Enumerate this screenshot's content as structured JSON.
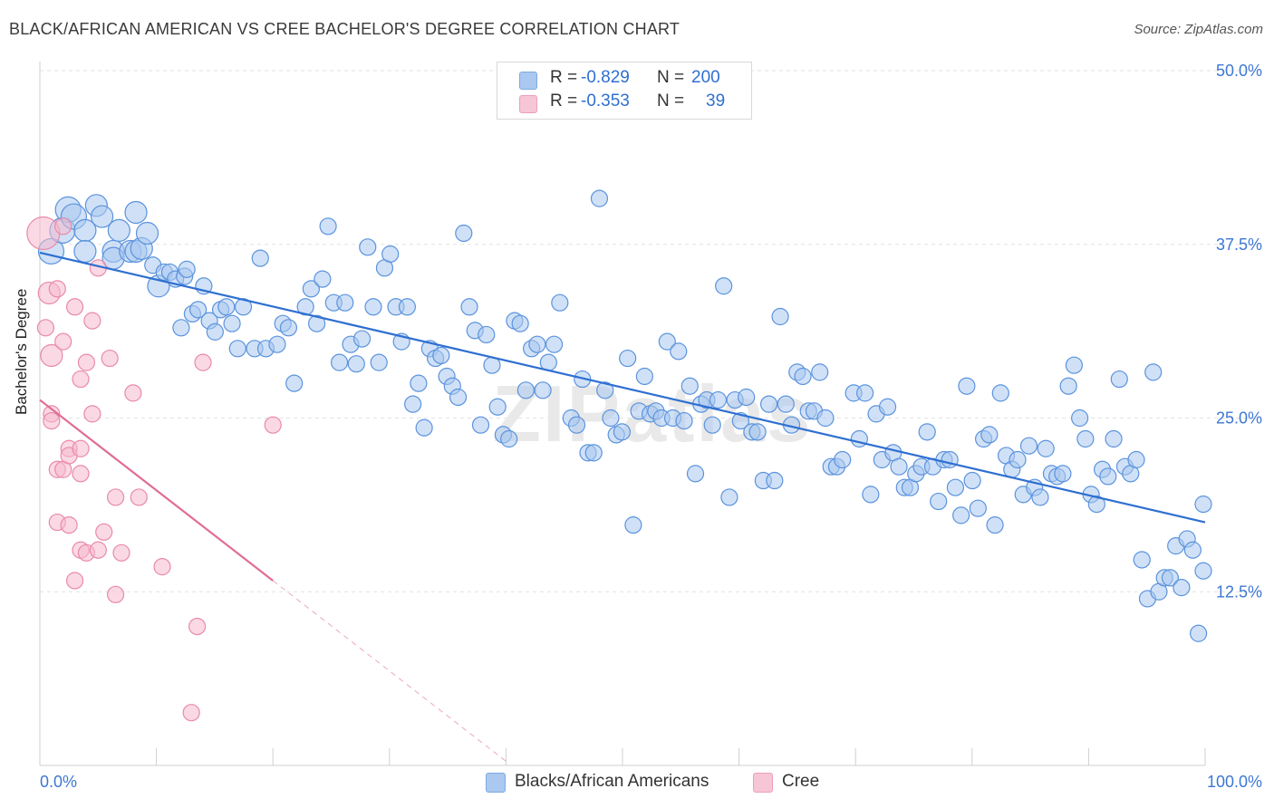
{
  "title": "BLACK/AFRICAN AMERICAN VS CREE BACHELOR'S DEGREE CORRELATION CHART",
  "source": "Source: ZipAtlas.com",
  "watermark": "ZIPatlas",
  "legend": {
    "rows": [
      {
        "r_label": "R =",
        "r_value": "-0.829",
        "n_label": "N =",
        "n_value": "200",
        "color": "#aac8f0"
      },
      {
        "r_label": "R =",
        "r_value": "-0.353",
        "n_label": "N =",
        "n_value": "39",
        "color": "#f6b9cd"
      }
    ]
  },
  "bottom_legend": [
    {
      "label": "Blacks/African Americans",
      "color": "#aac8f0"
    },
    {
      "label": "Cree",
      "color": "#f6b9cd"
    }
  ],
  "chart_data": {
    "type": "scatter",
    "title": "BLACK/AFRICAN AMERICAN VS CREE BACHELOR'S DEGREE CORRELATION CHART",
    "xlabel": "",
    "ylabel": "Bachelor's Degree",
    "xlim": [
      0,
      100
    ],
    "ylim": [
      0,
      50
    ],
    "x_tick_labels": [
      "0.0%",
      "100.0%"
    ],
    "y_tick_labels": [
      "12.5%",
      "25.0%",
      "37.5%",
      "50.0%"
    ],
    "y_ticks": [
      12.5,
      25.0,
      37.5,
      50.0
    ],
    "grid": true,
    "legend_position": "top-center",
    "series": [
      {
        "name": "Blacks/African Americans",
        "color": "#5b93dd",
        "fill": "#aac8f0",
        "trend": {
          "x": [
            0,
            100
          ],
          "y": [
            36.9,
            17.5
          ],
          "color": "#2e6fd1"
        },
        "points": [
          [
            1.0,
            37.0,
            2
          ],
          [
            2.0,
            38.5,
            2
          ],
          [
            2.5,
            40.0,
            2
          ],
          [
            3.0,
            39.5,
            2
          ],
          [
            4.0,
            38.5,
            1
          ],
          [
            4.0,
            37.0,
            1
          ],
          [
            5.0,
            40.3,
            1
          ],
          [
            5.5,
            39.5,
            1
          ],
          [
            6.5,
            37.0,
            1
          ],
          [
            6.5,
            36.5,
            1
          ],
          [
            7.0,
            38.5,
            1
          ],
          [
            8.0,
            37.0,
            1
          ],
          [
            8.5,
            39.8,
            1
          ],
          [
            8.5,
            37.0,
            1
          ],
          [
            9.0,
            37.2,
            1
          ],
          [
            9.5,
            38.3,
            1
          ],
          [
            10.0,
            36.0,
            0
          ],
          [
            10.5,
            34.5,
            1
          ],
          [
            11.0,
            35.5,
            0
          ],
          [
            11.5,
            35.5,
            0
          ],
          [
            12.0,
            35.0,
            0
          ],
          [
            12.5,
            31.5,
            0
          ],
          [
            12.8,
            35.2,
            0
          ],
          [
            13.0,
            35.7,
            0
          ],
          [
            13.5,
            32.5,
            0
          ],
          [
            14.0,
            32.8,
            0
          ],
          [
            14.5,
            34.5,
            0
          ],
          [
            15.0,
            32.0,
            0
          ],
          [
            15.5,
            31.2,
            0
          ],
          [
            16.0,
            32.8,
            0
          ],
          [
            16.5,
            33.0,
            0
          ],
          [
            17.0,
            31.8,
            0
          ],
          [
            17.5,
            30.0,
            0
          ],
          [
            18.0,
            33.0,
            0
          ],
          [
            19.0,
            30.0,
            0
          ],
          [
            19.5,
            36.5,
            0
          ],
          [
            20.0,
            30.0,
            0
          ],
          [
            21.0,
            30.3,
            0
          ],
          [
            21.5,
            31.8,
            0
          ],
          [
            22.0,
            31.5,
            0
          ],
          [
            22.5,
            27.5,
            0
          ],
          [
            23.5,
            33.0,
            0
          ],
          [
            24.0,
            34.3,
            0
          ],
          [
            24.5,
            31.8,
            0
          ],
          [
            25.0,
            35.0,
            0
          ],
          [
            25.5,
            38.8,
            0
          ],
          [
            26.0,
            33.3,
            0
          ],
          [
            26.5,
            29.0,
            0
          ],
          [
            27.0,
            33.3,
            0
          ],
          [
            27.5,
            30.3,
            0
          ],
          [
            28.0,
            28.9,
            0
          ],
          [
            28.5,
            30.7,
            0
          ],
          [
            29.0,
            37.3,
            0
          ],
          [
            29.5,
            33.0,
            0
          ],
          [
            30.0,
            29.0,
            0
          ],
          [
            30.5,
            35.8,
            0
          ],
          [
            31.0,
            36.8,
            0
          ],
          [
            31.5,
            33.0,
            0
          ],
          [
            32.0,
            30.5,
            0
          ],
          [
            32.5,
            33.0,
            0
          ],
          [
            33.0,
            26.0,
            0
          ],
          [
            33.5,
            27.5,
            0
          ],
          [
            34.0,
            24.3,
            0
          ],
          [
            34.5,
            30.0,
            0
          ],
          [
            35.0,
            29.3,
            0
          ],
          [
            35.5,
            29.5,
            0
          ],
          [
            36.0,
            28.0,
            0
          ],
          [
            36.5,
            27.3,
            0
          ],
          [
            37.0,
            26.5,
            0
          ],
          [
            37.5,
            38.3,
            0
          ],
          [
            38.0,
            33.0,
            0
          ],
          [
            38.5,
            31.3,
            0
          ],
          [
            39.0,
            24.5,
            0
          ],
          [
            39.5,
            31.0,
            0
          ],
          [
            40.0,
            28.8,
            0
          ],
          [
            40.5,
            25.8,
            0
          ],
          [
            41.0,
            23.8,
            0
          ],
          [
            41.5,
            23.5,
            0
          ],
          [
            42.0,
            32.0,
            0
          ],
          [
            42.5,
            31.8,
            0
          ],
          [
            43.0,
            27.0,
            0
          ],
          [
            43.5,
            30.0,
            0
          ],
          [
            44.0,
            30.3,
            0
          ],
          [
            44.5,
            27.0,
            0
          ],
          [
            45.0,
            29.0,
            0
          ],
          [
            45.5,
            30.3,
            0
          ],
          [
            46.0,
            33.3,
            0
          ],
          [
            47.0,
            25.0,
            0
          ],
          [
            47.5,
            24.5,
            0
          ],
          [
            48.0,
            27.8,
            0
          ],
          [
            48.5,
            22.5,
            0
          ],
          [
            49.0,
            22.5,
            0
          ],
          [
            49.5,
            40.8,
            0
          ],
          [
            50.0,
            27.0,
            0
          ],
          [
            50.5,
            25.0,
            0
          ],
          [
            51.0,
            23.8,
            0
          ],
          [
            51.5,
            24.0,
            0
          ],
          [
            52.0,
            29.3,
            0
          ],
          [
            52.5,
            17.3,
            0
          ],
          [
            53.0,
            25.5,
            0
          ],
          [
            53.5,
            28.0,
            0
          ],
          [
            54.0,
            25.3,
            0
          ],
          [
            54.5,
            25.5,
            0
          ],
          [
            55.0,
            25.0,
            0
          ],
          [
            55.5,
            30.5,
            0
          ],
          [
            56.0,
            25.0,
            0
          ],
          [
            56.5,
            29.8,
            0
          ],
          [
            57.0,
            24.8,
            0
          ],
          [
            57.5,
            27.3,
            0
          ],
          [
            58.0,
            21.0,
            0
          ],
          [
            58.5,
            26.0,
            0
          ],
          [
            59.0,
            26.3,
            0
          ],
          [
            59.5,
            24.5,
            0
          ],
          [
            60.0,
            26.3,
            0
          ],
          [
            60.5,
            34.5,
            0
          ],
          [
            61.0,
            19.3,
            0
          ],
          [
            61.5,
            26.3,
            0
          ],
          [
            62.0,
            24.8,
            0
          ],
          [
            62.5,
            26.5,
            0
          ],
          [
            63.0,
            24.0,
            0
          ],
          [
            63.5,
            24.0,
            0
          ],
          [
            64.0,
            20.5,
            0
          ],
          [
            64.5,
            26.0,
            0
          ],
          [
            65.0,
            20.5,
            0
          ],
          [
            65.5,
            32.3,
            0
          ],
          [
            66.0,
            26.0,
            0
          ],
          [
            66.5,
            24.5,
            0
          ],
          [
            67.0,
            28.3,
            0
          ],
          [
            67.5,
            28.0,
            0
          ],
          [
            68.0,
            25.5,
            0
          ],
          [
            68.5,
            25.5,
            0
          ],
          [
            69.0,
            28.3,
            0
          ],
          [
            69.5,
            25.0,
            0
          ],
          [
            70.0,
            21.5,
            0
          ],
          [
            70.5,
            21.5,
            0
          ],
          [
            71.0,
            22.0,
            0
          ],
          [
            72.0,
            26.8,
            0
          ],
          [
            72.5,
            23.5,
            0
          ],
          [
            73.0,
            26.8,
            0
          ],
          [
            73.5,
            19.5,
            0
          ],
          [
            74.0,
            25.3,
            0
          ],
          [
            74.5,
            22.0,
            0
          ],
          [
            75.0,
            25.8,
            0
          ],
          [
            75.5,
            22.5,
            0
          ],
          [
            76.0,
            21.5,
            0
          ],
          [
            76.5,
            20.0,
            0
          ],
          [
            77.0,
            20.0,
            0
          ],
          [
            77.5,
            21.0,
            0
          ],
          [
            78.0,
            21.5,
            0
          ],
          [
            78.5,
            24.0,
            0
          ],
          [
            79.0,
            21.5,
            0
          ],
          [
            79.5,
            19.0,
            0
          ],
          [
            80.0,
            22.0,
            0
          ],
          [
            80.5,
            22.0,
            0
          ],
          [
            81.0,
            20.0,
            0
          ],
          [
            81.5,
            18.0,
            0
          ],
          [
            82.0,
            27.3,
            0
          ],
          [
            82.5,
            20.5,
            0
          ],
          [
            83.0,
            18.5,
            0
          ],
          [
            83.5,
            23.5,
            0
          ],
          [
            84.0,
            23.8,
            0
          ],
          [
            84.5,
            17.3,
            0
          ],
          [
            85.0,
            26.8,
            0
          ],
          [
            85.5,
            22.3,
            0
          ],
          [
            86.0,
            21.3,
            0
          ],
          [
            86.5,
            22.0,
            0
          ],
          [
            87.0,
            19.5,
            0
          ],
          [
            87.5,
            23.0,
            0
          ],
          [
            88.0,
            20.0,
            0
          ],
          [
            88.5,
            19.3,
            0
          ],
          [
            89.0,
            22.8,
            0
          ],
          [
            89.5,
            21.0,
            0
          ],
          [
            90.0,
            20.8,
            0
          ],
          [
            90.5,
            21.0,
            0
          ],
          [
            91.0,
            27.3,
            0
          ],
          [
            91.5,
            28.8,
            0
          ],
          [
            92.0,
            25.0,
            0
          ],
          [
            92.5,
            23.5,
            0
          ],
          [
            93.0,
            19.5,
            0
          ],
          [
            93.5,
            18.8,
            0
          ],
          [
            94.0,
            21.3,
            0
          ],
          [
            94.5,
            20.8,
            0
          ],
          [
            95.0,
            23.5,
            0
          ],
          [
            95.5,
            27.8,
            0
          ],
          [
            96.0,
            21.5,
            0
          ],
          [
            96.5,
            21.0,
            0
          ],
          [
            97.0,
            22.0,
            0
          ],
          [
            97.5,
            14.8,
            0
          ],
          [
            98.0,
            12.0,
            0
          ],
          [
            98.5,
            28.3,
            0
          ],
          [
            99.0,
            12.5,
            0
          ],
          [
            99.5,
            13.5,
            0
          ],
          [
            100.0,
            13.5,
            0
          ],
          [
            100.5,
            15.8,
            0
          ],
          [
            101.0,
            12.8,
            0
          ],
          [
            101.5,
            16.3,
            0
          ],
          [
            102.0,
            15.5,
            0
          ],
          [
            102.5,
            9.5,
            0
          ],
          [
            103.0,
            18.8,
            0
          ],
          [
            103.5,
            14.0,
            0
          ]
        ]
      },
      {
        "name": "Cree",
        "color": "#e98aa8",
        "fill": "#f6b9cd",
        "trend": {
          "x": [
            0,
            20
          ],
          "y": [
            26.3,
            13.3
          ],
          "dash_to_x": 40,
          "color": "#e06c94"
        },
        "points": [
          [
            0.3,
            38.3,
            3
          ],
          [
            0.5,
            31.5,
            0
          ],
          [
            0.8,
            34.0,
            1
          ],
          [
            1.0,
            29.5,
            1
          ],
          [
            1.0,
            25.3,
            0
          ],
          [
            1.0,
            24.8,
            0
          ],
          [
            1.5,
            21.3,
            0
          ],
          [
            1.5,
            17.5,
            0
          ],
          [
            2.0,
            38.8,
            0
          ],
          [
            2.0,
            21.3,
            0
          ],
          [
            2.0,
            30.5,
            0
          ],
          [
            2.5,
            17.3,
            0
          ],
          [
            2.5,
            22.8,
            0
          ],
          [
            2.5,
            22.3,
            0
          ],
          [
            3.0,
            33.0,
            0
          ],
          [
            3.0,
            13.3,
            0
          ],
          [
            3.5,
            27.8,
            0
          ],
          [
            3.5,
            21.0,
            0
          ],
          [
            3.5,
            15.5,
            0
          ],
          [
            3.5,
            22.8,
            0
          ],
          [
            4.0,
            29.0,
            0
          ],
          [
            4.0,
            15.3,
            0
          ],
          [
            4.5,
            32.0,
            0
          ],
          [
            4.5,
            25.3,
            0
          ],
          [
            5.0,
            35.8,
            0
          ],
          [
            5.0,
            15.5,
            0
          ],
          [
            5.5,
            16.8,
            0
          ],
          [
            6.0,
            29.3,
            0
          ],
          [
            6.5,
            19.3,
            0
          ],
          [
            6.5,
            12.3,
            0
          ],
          [
            7.0,
            15.3,
            0
          ],
          [
            8.0,
            26.8,
            0
          ],
          [
            8.5,
            19.3,
            0
          ],
          [
            10.5,
            14.3,
            0
          ],
          [
            14.0,
            29.0,
            0
          ],
          [
            13.5,
            10.0,
            0
          ],
          [
            13.0,
            3.8,
            0
          ],
          [
            20.0,
            24.5,
            0
          ],
          [
            1.5,
            34.3,
            0
          ]
        ]
      }
    ]
  }
}
